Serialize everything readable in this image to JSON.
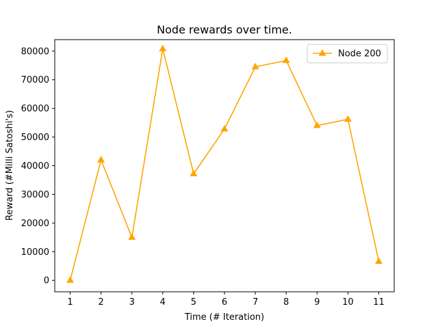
{
  "chart_data": {
    "type": "line",
    "title": "Node rewards over time.",
    "xlabel": "Time (# Iteration)",
    "ylabel": "Reward (#Milli Satoshi's)",
    "x": [
      1,
      2,
      3,
      4,
      5,
      6,
      7,
      8,
      9,
      10,
      11
    ],
    "xticks": [
      "1",
      "2",
      "3",
      "4",
      "5",
      "6",
      "7",
      "8",
      "9",
      "10",
      "11"
    ],
    "yticks": [
      "0",
      "10000",
      "20000",
      "30000",
      "40000",
      "50000",
      "60000",
      "70000",
      "80000"
    ],
    "xlim": [
      0.5,
      11.5
    ],
    "ylim": [
      -4000,
      84000
    ],
    "grid": false,
    "legend_position": "top-right",
    "series": [
      {
        "name": "Node 200",
        "color": "#ffa500",
        "marker": "triangle-up",
        "values": [
          0,
          42000,
          15000,
          80800,
          37200,
          52800,
          74500,
          76700,
          54000,
          56200,
          6600
        ]
      }
    ]
  }
}
